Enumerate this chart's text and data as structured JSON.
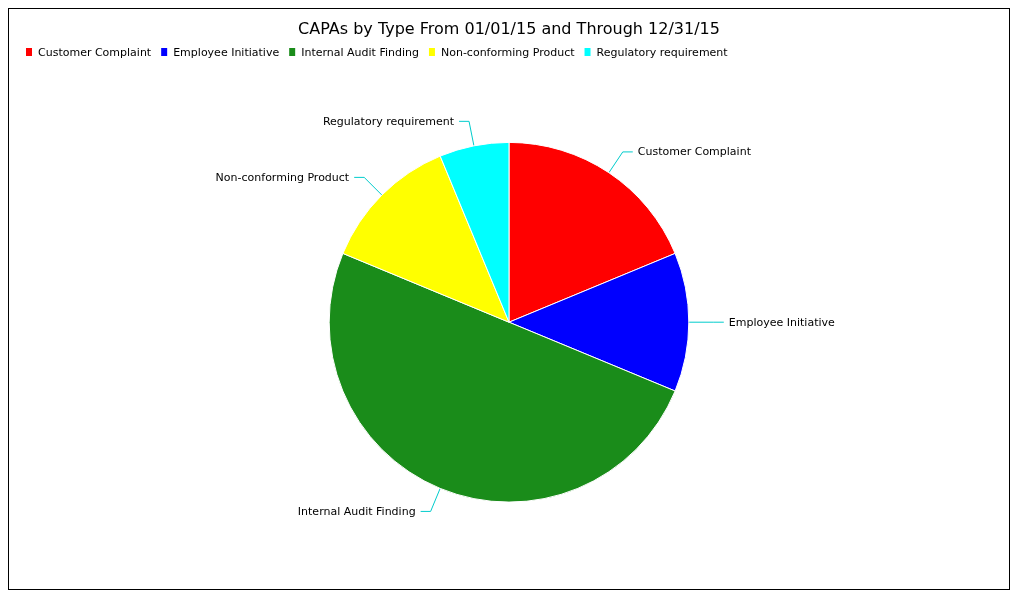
{
  "chart_data": {
    "type": "pie",
    "title": "CAPAs by Type From 01/01/15 and Through 12/31/15",
    "categories": [
      "Customer Complaint",
      "Employee Initiative",
      "Internal Audit Finding",
      "Non-conforming Product",
      "Regulatory requirement"
    ],
    "values": [
      18.75,
      12.5,
      50,
      12.5,
      6.25
    ],
    "colors": [
      "#ff0000",
      "#0000ff",
      "#1a8c1a",
      "#ffff00",
      "#00ffff"
    ],
    "legend": "top left"
  }
}
